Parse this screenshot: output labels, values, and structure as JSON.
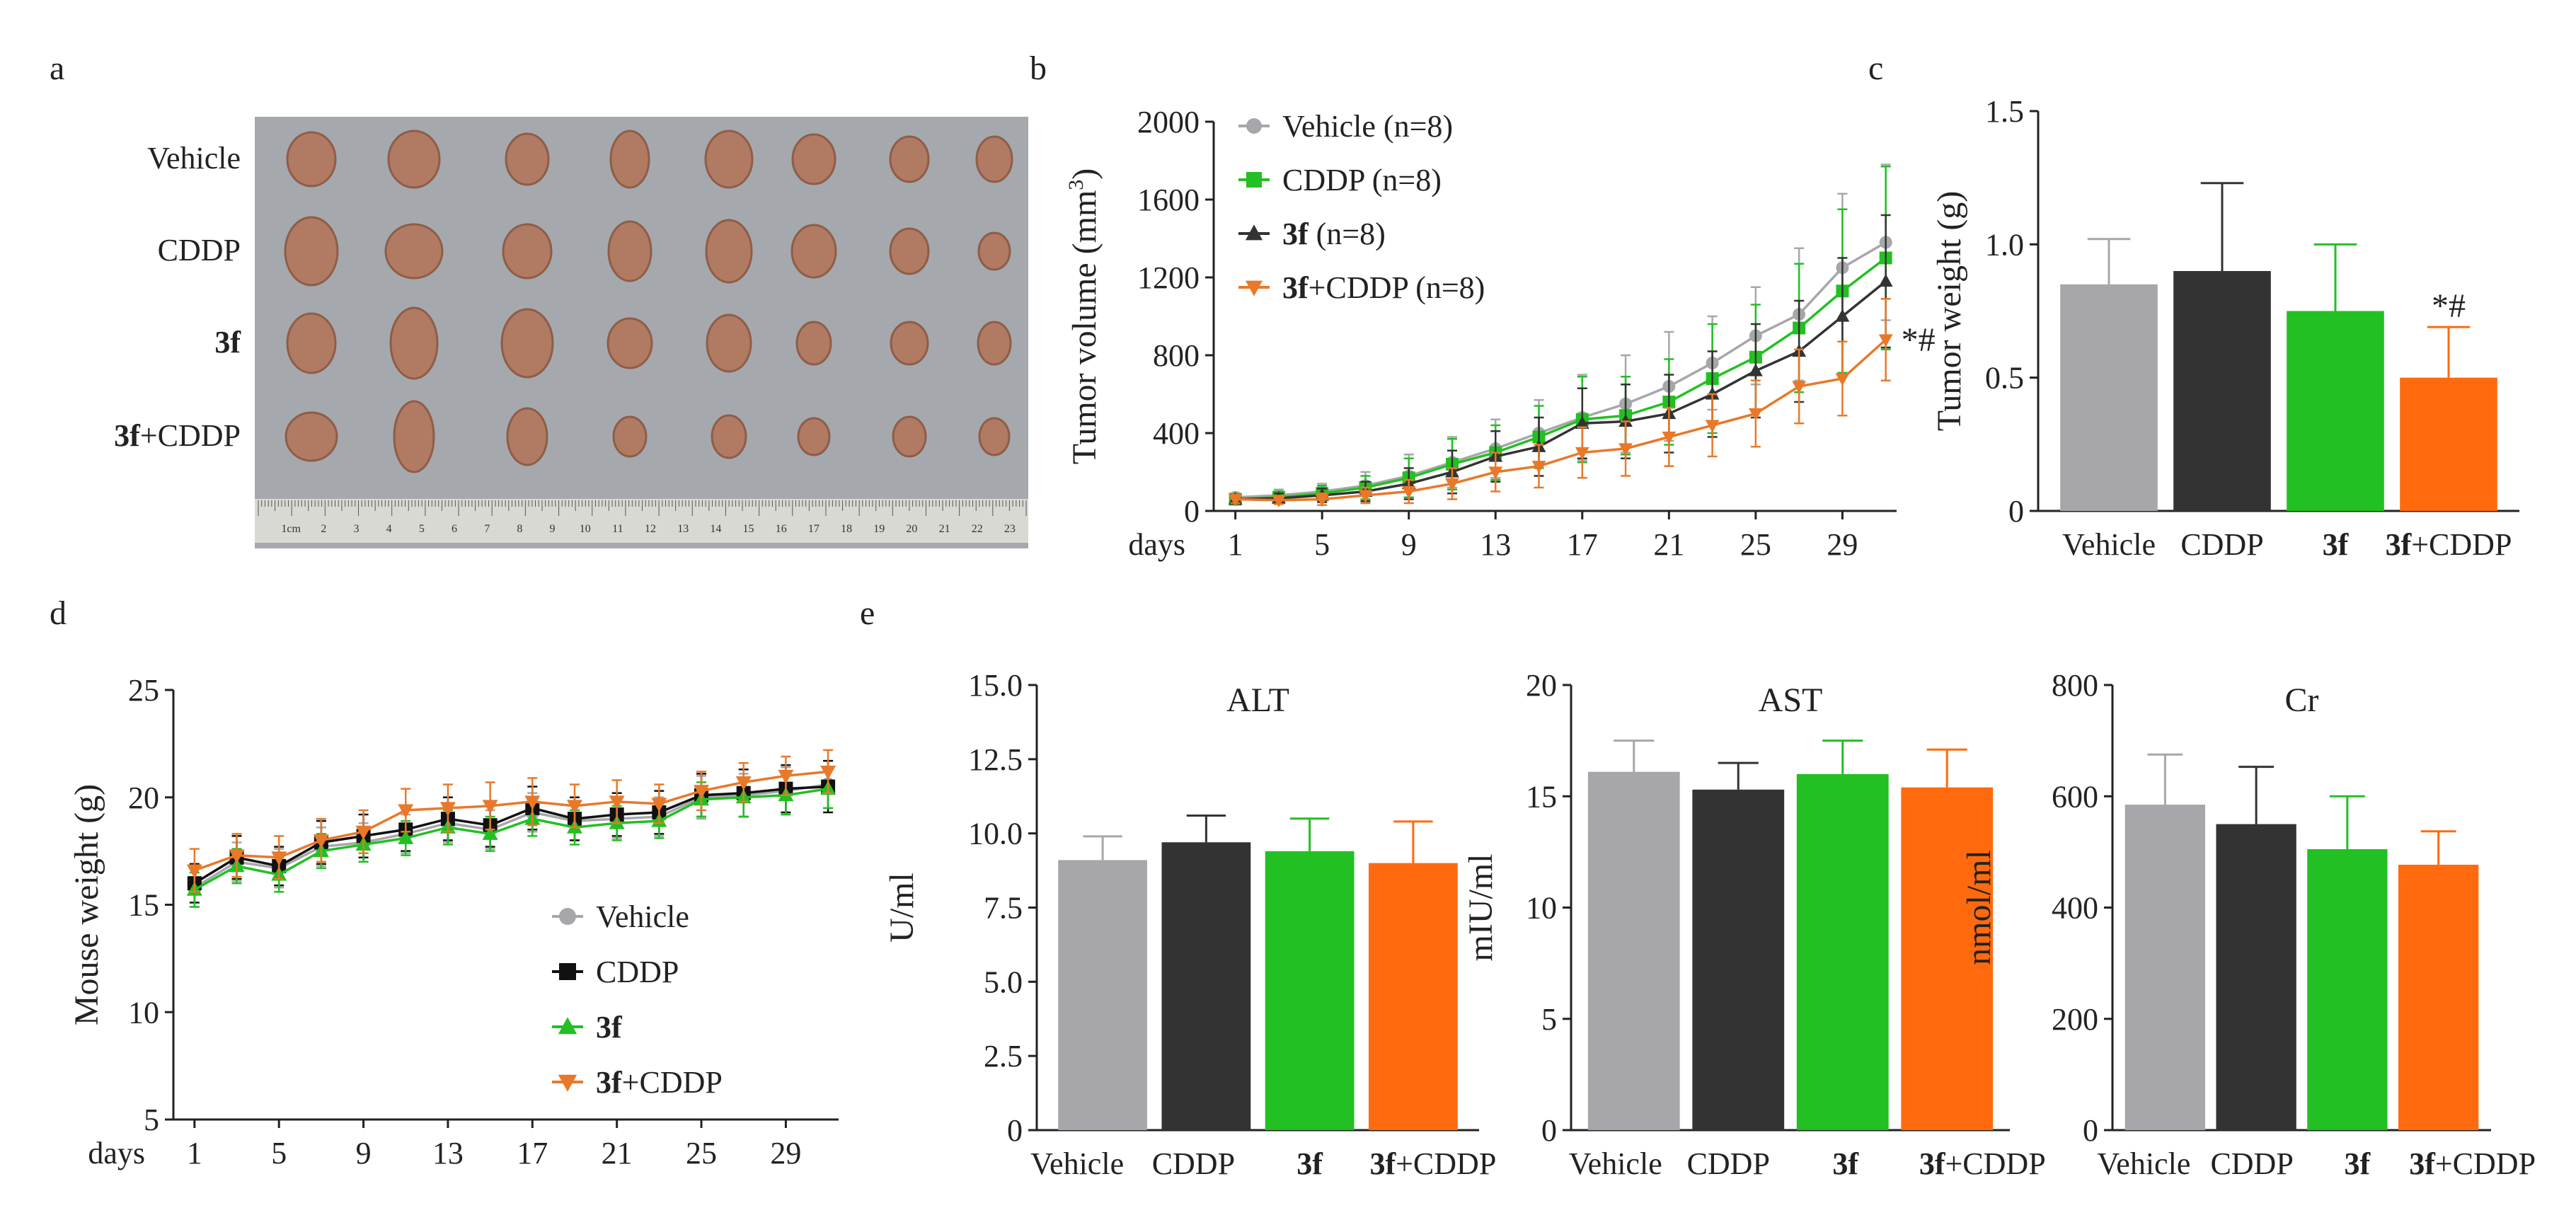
{
  "panel_labels": {
    "a": "a",
    "b": "b",
    "c": "c",
    "d": "d",
    "e": "e"
  },
  "colors": {
    "vehicle": "#a7a7ab",
    "cddp": "#333333",
    "f3": "#22c022",
    "combo": "#ff6a0f",
    "combo_line": "#e8792a",
    "tumor": "#b07a63",
    "tray": "#a5a9ae",
    "ruler": "#d9d9d4"
  },
  "photo": {
    "row_labels": [
      {
        "bold": "",
        "rest": "Vehicle"
      },
      {
        "bold": "",
        "rest": "CDDP"
      },
      {
        "bold": "3f",
        "rest": ""
      },
      {
        "bold": "3f",
        "rest": "+CDDP"
      }
    ],
    "tumors_per_row": 8,
    "ruler_numbers": [
      "1cm",
      "2",
      "3",
      "4",
      "5",
      "6",
      "7",
      "8",
      "9",
      "10",
      "11",
      "12",
      "13",
      "14",
      "15",
      "16",
      "17",
      "18",
      "19",
      "20",
      "21",
      "22",
      "23"
    ]
  },
  "chart_data": [
    {
      "id": "b",
      "type": "line",
      "title": "",
      "xlabel": "days",
      "ylabel": "Tumor volume (mm³)",
      "ylabel_main": "Tumor volume (mm",
      "ylabel_sup": "3",
      "ylabel_close": ")",
      "ylim": [
        0,
        2000
      ],
      "yticks": [
        0,
        400,
        800,
        1200,
        1600,
        2000
      ],
      "xlim": [
        0,
        31.5
      ],
      "xticks": [
        1,
        5,
        9,
        13,
        17,
        21,
        25,
        29
      ],
      "x": [
        1,
        3,
        5,
        7,
        9,
        11,
        13,
        15,
        17,
        19,
        21,
        23,
        25,
        27,
        29,
        31
      ],
      "legend_position": "top-left",
      "annotation": {
        "text": "*#",
        "x": 31,
        "series": 3
      },
      "series": [
        {
          "name_bold": "",
          "name_rest": "Vehicle (n=8)",
          "marker": "circle",
          "color": "#a7a7ab",
          "values": [
            70,
            80,
            100,
            130,
            180,
            250,
            320,
            400,
            480,
            550,
            640,
            760,
            900,
            1010,
            1250,
            1380
          ],
          "errors": [
            20,
            30,
            40,
            70,
            110,
            130,
            150,
            170,
            220,
            250,
            280,
            240,
            250,
            340,
            380,
            400
          ]
        },
        {
          "name_bold": "",
          "name_rest": "CDDP (n=8)",
          "marker": "square",
          "color": "#22c022",
          "values": [
            60,
            70,
            90,
            120,
            170,
            240,
            300,
            380,
            470,
            490,
            560,
            680,
            790,
            940,
            1130,
            1300
          ],
          "errors": [
            20,
            30,
            40,
            60,
            100,
            130,
            140,
            160,
            220,
            200,
            220,
            280,
            270,
            330,
            420,
            470
          ]
        },
        {
          "name_bold": "3f",
          "name_rest": " (n=8)",
          "marker": "triangle",
          "color": "#333333",
          "values": [
            60,
            65,
            80,
            100,
            140,
            200,
            280,
            330,
            450,
            460,
            500,
            600,
            720,
            820,
            1000,
            1180
          ],
          "errors": [
            20,
            25,
            35,
            50,
            80,
            110,
            130,
            150,
            180,
            190,
            200,
            220,
            240,
            260,
            300,
            340
          ]
        },
        {
          "name_bold": "3f",
          "name_rest": "+CDDP (n=8)",
          "marker": "triangle-down",
          "color": "#e8792a",
          "values": [
            60,
            55,
            60,
            80,
            100,
            140,
            200,
            230,
            300,
            320,
            380,
            440,
            500,
            640,
            680,
            880
          ],
          "errors": [
            20,
            20,
            30,
            40,
            60,
            80,
            100,
            110,
            130,
            140,
            150,
            160,
            170,
            190,
            190,
            210
          ]
        }
      ]
    },
    {
      "id": "c",
      "type": "bar",
      "title": "",
      "xlabel": "",
      "ylabel": "Tumor weight (g)",
      "ylim": [
        0,
        1.5
      ],
      "yticks": [
        "0",
        "0.5",
        "1.0",
        "1.5"
      ],
      "ytick_values": [
        0,
        0.5,
        1.0,
        1.5
      ],
      "categories": [
        {
          "bold": "",
          "rest": "Vehicle"
        },
        {
          "bold": "",
          "rest": "CDDP"
        },
        {
          "bold": "3f",
          "rest": ""
        },
        {
          "bold": "3f",
          "rest": "+CDDP"
        }
      ],
      "values": [
        0.85,
        0.9,
        0.75,
        0.5
      ],
      "errors": [
        0.17,
        0.33,
        0.25,
        0.19
      ],
      "colors": [
        "#a7a7ab",
        "#333333",
        "#22c022",
        "#ff6a0f"
      ],
      "annotation": {
        "text": "*#",
        "index": 3
      }
    },
    {
      "id": "d",
      "type": "line",
      "title": "",
      "xlabel": "days",
      "ylabel": "Mouse weight (g)",
      "ylim": [
        5,
        25
      ],
      "yticks": [
        5,
        10,
        15,
        20,
        25
      ],
      "xlim": [
        0,
        31.5
      ],
      "xticks": [
        1,
        5,
        9,
        13,
        17,
        21,
        25,
        29
      ],
      "x": [
        1,
        3,
        5,
        7,
        9,
        11,
        13,
        15,
        17,
        19,
        21,
        23,
        25,
        27,
        29,
        31
      ],
      "legend_position": "bottom-right",
      "series": [
        {
          "name_bold": "",
          "name_rest": "Vehicle",
          "marker": "circle",
          "color": "#a7a7ab",
          "values": [
            15.8,
            17.0,
            16.7,
            17.7,
            17.9,
            18.3,
            18.8,
            18.5,
            19.3,
            18.9,
            19.0,
            19.1,
            20.0,
            20.1,
            20.3,
            20.6
          ],
          "errors": [
            0.9,
            0.9,
            0.9,
            0.9,
            0.9,
            0.9,
            0.9,
            0.9,
            0.9,
            0.9,
            0.9,
            0.9,
            1.0,
            1.0,
            1.1,
            1.1
          ]
        },
        {
          "name_bold": "",
          "name_rest": "CDDP",
          "marker": "square",
          "color": "#111111",
          "values": [
            16.0,
            17.2,
            16.8,
            17.9,
            18.2,
            18.5,
            19.0,
            18.7,
            19.5,
            19.0,
            19.2,
            19.3,
            20.1,
            20.2,
            20.4,
            20.5
          ],
          "errors": [
            0.9,
            1.0,
            0.9,
            1.0,
            1.0,
            1.0,
            1.0,
            1.0,
            1.0,
            1.0,
            1.0,
            1.0,
            1.0,
            1.1,
            1.1,
            1.2
          ]
        },
        {
          "name_bold": "3f",
          "name_rest": "",
          "marker": "triangle",
          "color": "#22c022",
          "values": [
            15.7,
            16.8,
            16.4,
            17.5,
            17.8,
            18.1,
            18.6,
            18.3,
            19.0,
            18.6,
            18.8,
            18.9,
            19.9,
            20.0,
            20.1,
            20.4
          ],
          "errors": [
            0.8,
            0.8,
            0.8,
            0.8,
            0.8,
            0.8,
            0.8,
            0.8,
            0.8,
            0.8,
            0.8,
            0.8,
            0.8,
            0.9,
            0.9,
            0.9
          ]
        },
        {
          "name_bold": "3f",
          "name_rest": "+CDDP",
          "marker": "triangle-down",
          "color": "#e8792a",
          "values": [
            16.6,
            17.3,
            17.2,
            18.0,
            18.4,
            19.4,
            19.5,
            19.6,
            19.8,
            19.6,
            19.8,
            19.7,
            20.3,
            20.7,
            21.0,
            21.2
          ],
          "errors": [
            1.0,
            1.0,
            1.0,
            1.0,
            1.0,
            1.0,
            1.1,
            1.1,
            1.1,
            1.0,
            1.0,
            0.9,
            0.9,
            0.9,
            0.9,
            1.0
          ]
        }
      ]
    },
    {
      "id": "e1",
      "type": "bar",
      "title": "ALT",
      "xlabel": "",
      "ylabel": "U/ml",
      "ylim": [
        0,
        15
      ],
      "yticks": [
        "0",
        "2.5",
        "5.0",
        "7.5",
        "10.0",
        "12.5",
        "15.0"
      ],
      "ytick_values": [
        0,
        2.5,
        5,
        7.5,
        10,
        12.5,
        15
      ],
      "categories": [
        {
          "bold": "",
          "rest": "Vehicle"
        },
        {
          "bold": "",
          "rest": "CDDP"
        },
        {
          "bold": "3f",
          "rest": ""
        },
        {
          "bold": "3f",
          "rest": "+CDDP"
        }
      ],
      "values": [
        9.1,
        9.7,
        9.4,
        9.0
      ],
      "errors": [
        0.8,
        0.9,
        1.1,
        1.4
      ],
      "colors": [
        "#a7a7ab",
        "#333333",
        "#22c022",
        "#ff6a0f"
      ]
    },
    {
      "id": "e2",
      "type": "bar",
      "title": "AST",
      "xlabel": "",
      "ylabel": "mIU/ml",
      "ylim": [
        0,
        20
      ],
      "yticks": [
        "0",
        "5",
        "10",
        "15",
        "20"
      ],
      "ytick_values": [
        0,
        5,
        10,
        15,
        20
      ],
      "categories": [
        {
          "bold": "",
          "rest": "Vehicle"
        },
        {
          "bold": "",
          "rest": "CDDP"
        },
        {
          "bold": "3f",
          "rest": ""
        },
        {
          "bold": "3f",
          "rest": "+CDDP"
        }
      ],
      "values": [
        16.1,
        15.3,
        16.0,
        15.4
      ],
      "errors": [
        1.4,
        1.2,
        1.5,
        1.7
      ],
      "colors": [
        "#a7a7ab",
        "#333333",
        "#22c022",
        "#ff6a0f"
      ]
    },
    {
      "id": "e3",
      "type": "bar",
      "title": "Cr",
      "xlabel": "",
      "ylabel": "nmol/ml",
      "ylim": [
        0,
        800
      ],
      "yticks": [
        "0",
        "200",
        "400",
        "600",
        "800"
      ],
      "ytick_values": [
        0,
        200,
        400,
        600,
        800
      ],
      "categories": [
        {
          "bold": "",
          "rest": "Vehicle"
        },
        {
          "bold": "",
          "rest": "CDDP"
        },
        {
          "bold": "3f",
          "rest": ""
        },
        {
          "bold": "3f",
          "rest": "+CDDP"
        }
      ],
      "values": [
        585,
        550,
        505,
        477
      ],
      "errors": [
        90,
        103,
        95,
        60
      ],
      "colors": [
        "#a7a7ab",
        "#333333",
        "#22c022",
        "#ff6a0f"
      ]
    }
  ]
}
